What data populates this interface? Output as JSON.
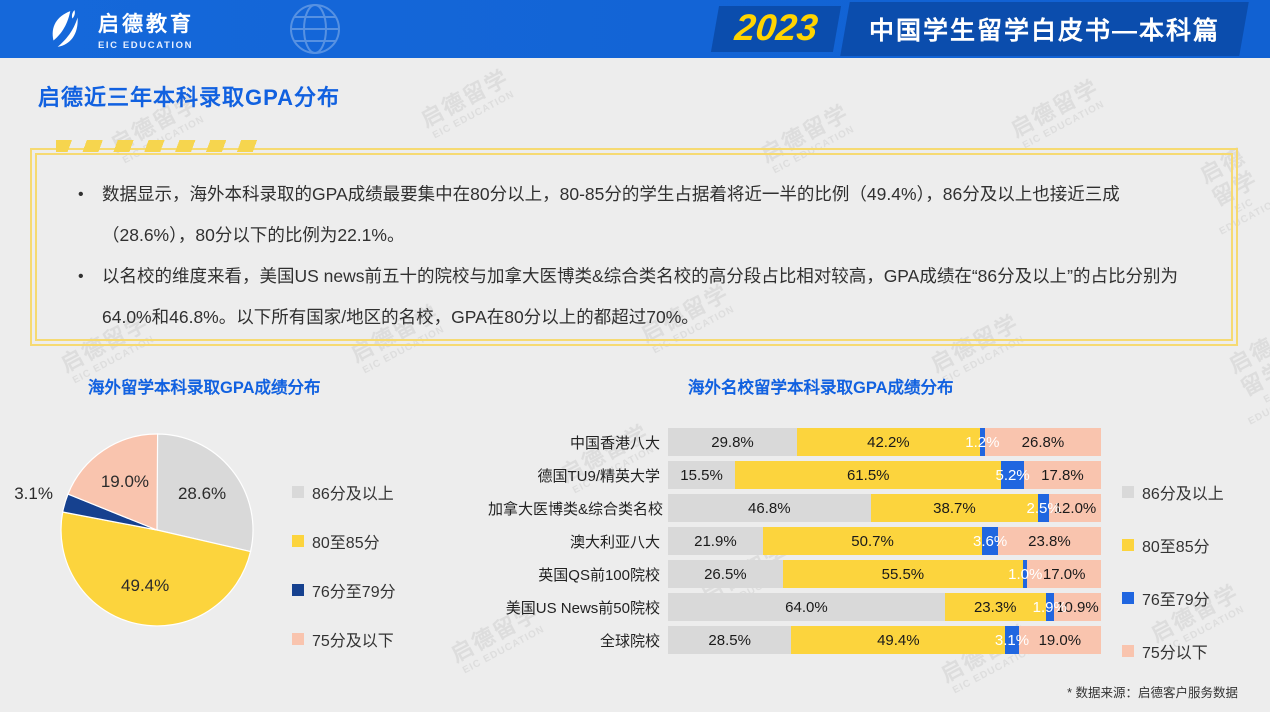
{
  "header": {
    "logo_cn": "启德教育",
    "logo_en": "EIC EDUCATION",
    "year_badge": "2023",
    "report_title": "中国学生留学白皮书—本科篇"
  },
  "page": {
    "title": "启德近三年本科录取GPA分布",
    "watermark_cn": "启德留学",
    "watermark_en": "EIC EDUCATION",
    "footnote": "* 数据来源：启德客户服务数据"
  },
  "summary": {
    "bullet_marker": "•",
    "bullet1": "数据显示，海外本科录取的GPA成绩最要集中在80分以上，80-85分的学生占据着将近一半的比例（49.4%），86分及以上也接近三成（28.6%），80分以下的比例为22.1%。",
    "bullet2": "以名校的维度来看，美国US news前五十的院校与加拿大医博类&综合类名校的高分段占比相对较高，GPA成绩在“86分及以上”的占比分别为64.0%和46.8%。以下所有国家/地区的名校，GPA在80分以上的都超过70%。"
  },
  "colors": {
    "header_blue": "#1265d6",
    "badge_blue": "#0b4dad",
    "accent_blue": "#1161e0",
    "year_yellow": "#ffd400",
    "box_border_yellow": "#f6da72",
    "gray": "#d9d9d9",
    "yellow": "#fcd43d",
    "pie_navy": "#16418f",
    "bar_blue": "#2066e0",
    "pink": "#f9c4ae"
  },
  "chart_data": [
    {
      "type": "pie",
      "title": "海外留学本科录取GPA成绩分布",
      "labels": [
        "86分及以上",
        "80至85分",
        "76分至79分",
        "75分及以下"
      ],
      "values": [
        28.6,
        49.4,
        3.1,
        19.0
      ],
      "colors": [
        "#d9d9d9",
        "#fcd43d",
        "#16418f",
        "#f9c4ae"
      ],
      "start_angle_deg": 0,
      "direction": "clockwise",
      "legend_position": "right"
    },
    {
      "type": "bar",
      "title": "海外名校留学本科录取GPA成绩分布",
      "orientation": "horizontal-stacked",
      "categories": [
        "中国香港八大",
        "德国TU9/精英大学",
        "加拿大医博类&综合类名校",
        "澳大利亚八大",
        "英国QS前100院校",
        "美国US News前50院校",
        "全球院校"
      ],
      "series": [
        {
          "name": "86分及以上",
          "color": "#d9d9d9",
          "values": [
            29.8,
            15.5,
            46.8,
            21.9,
            26.5,
            64.0,
            28.5
          ]
        },
        {
          "name": "80至85分",
          "color": "#fcd43d",
          "values": [
            42.2,
            61.5,
            38.7,
            50.7,
            55.5,
            23.3,
            49.4
          ]
        },
        {
          "name": "76至79分",
          "color": "#2066e0",
          "values": [
            1.2,
            5.2,
            2.5,
            3.6,
            1.0,
            1.9,
            3.1
          ]
        },
        {
          "name": "75分以下",
          "color": "#f9c4ae",
          "values": [
            26.8,
            17.8,
            12.0,
            23.8,
            17.0,
            10.9,
            19.0
          ]
        }
      ],
      "xlim": [
        0,
        100
      ],
      "value_label_format": "0.0%",
      "legend_position": "right"
    }
  ]
}
